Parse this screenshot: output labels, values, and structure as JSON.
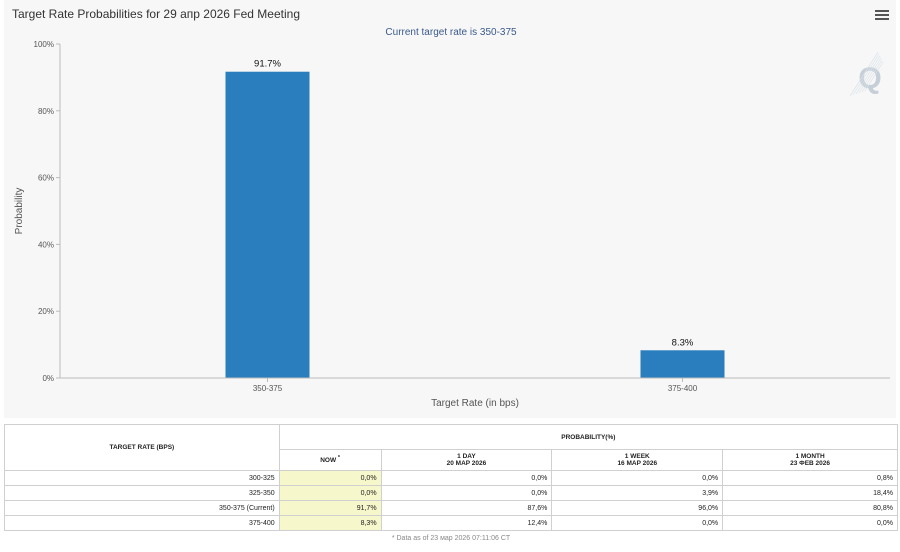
{
  "chart_data": {
    "type": "bar",
    "title": "Target Rate Probabilities for 29 апр 2026 Fed Meeting",
    "subtitle": "Current target rate is 350-375",
    "categories": [
      "350-375",
      "375-400"
    ],
    "values": [
      91.7,
      8.3
    ],
    "value_labels": [
      "91.7%",
      "8.3%"
    ],
    "xlabel": "Target Rate (in bps)",
    "ylabel": "Probability",
    "ylim": [
      0,
      100
    ],
    "yticks": [
      0,
      20,
      40,
      60,
      80,
      100
    ],
    "ytick_labels": [
      "0%",
      "20%",
      "40%",
      "60%",
      "80%",
      "100%"
    ],
    "grid": false,
    "bar_color": "#2a7ebd"
  },
  "watermark": "Q",
  "menu_icon": "hamburger-menu-icon",
  "table": {
    "col_rate_header": "TARGET RATE (BPS)",
    "prob_header": "PROBABILITY(%)",
    "now_label": "NOW",
    "now_marker": "*",
    "periods": [
      {
        "label": "1 DAY",
        "date": "20 MAP 2026"
      },
      {
        "label": "1 WEEK",
        "date": "16 MAP 2026"
      },
      {
        "label": "1 MONTH",
        "date": "23 ФЕВ 2026"
      }
    ],
    "rows": [
      {
        "rate": "300-325",
        "now": "0,0%",
        "d1": "0,0%",
        "w1": "0,0%",
        "m1": "0,8%"
      },
      {
        "rate": "325-350",
        "now": "0,0%",
        "d1": "0,0%",
        "w1": "3,9%",
        "m1": "18,4%"
      },
      {
        "rate": "350-375 (Current)",
        "now": "91,7%",
        "d1": "87,6%",
        "w1": "96,0%",
        "m1": "80,8%"
      },
      {
        "rate": "375-400",
        "now": "8,3%",
        "d1": "12,4%",
        "w1": "0,0%",
        "m1": "0,0%"
      }
    ],
    "footnote": "* Data as of 23 мар 2026 07:11:06 CT"
  }
}
